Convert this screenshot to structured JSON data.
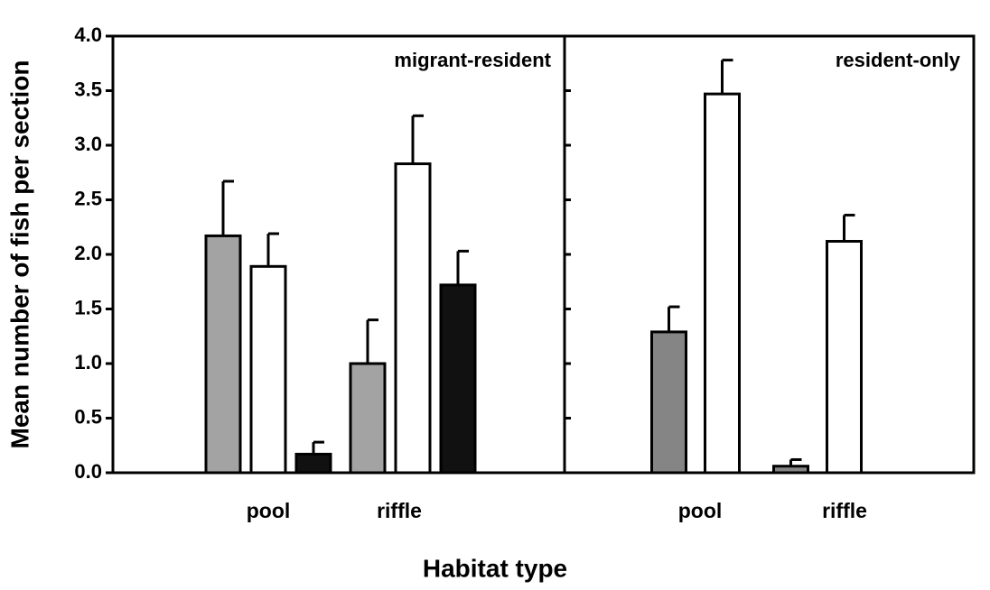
{
  "xlabel": "Habitat type",
  "ylabel": "Mean number of fish per section",
  "chart_data": [
    {
      "type": "bar",
      "title": "migrant-resident",
      "categories": [
        "pool",
        "riffle"
      ],
      "series": [
        {
          "color": "#a3a3a3",
          "values": [
            2.17,
            1.0
          ],
          "errors": [
            0.5,
            0.4
          ]
        },
        {
          "color": "#ffffff",
          "values": [
            1.89,
            2.83
          ],
          "errors": [
            0.3,
            0.44
          ]
        },
        {
          "color": "#111111",
          "values": [
            0.17,
            1.72
          ],
          "errors": [
            0.11,
            0.31
          ]
        }
      ],
      "ylim": [
        0,
        4
      ],
      "yticks": [
        {
          "value": 0,
          "label": "0.0"
        },
        {
          "value": 0.5,
          "label": "0.5"
        },
        {
          "value": 1,
          "label": "1.0"
        },
        {
          "value": 1.5,
          "label": "1.5"
        },
        {
          "value": 2,
          "label": "2.0"
        },
        {
          "value": 2.5,
          "label": "2.5"
        },
        {
          "value": 3,
          "label": "3.0"
        },
        {
          "value": 3.5,
          "label": "3.5"
        },
        {
          "value": 4,
          "label": "4.0"
        }
      ]
    },
    {
      "type": "bar",
      "title": "resident-only",
      "categories": [
        "pool",
        "riffle"
      ],
      "series": [
        {
          "color": "#858585",
          "values": [
            1.29,
            0.06
          ],
          "errors": [
            0.23,
            0.06
          ]
        },
        {
          "color": "#ffffff",
          "values": [
            3.47,
            2.12
          ],
          "errors": [
            0.31,
            0.24
          ]
        }
      ],
      "ylim": [
        0,
        4
      ]
    }
  ]
}
